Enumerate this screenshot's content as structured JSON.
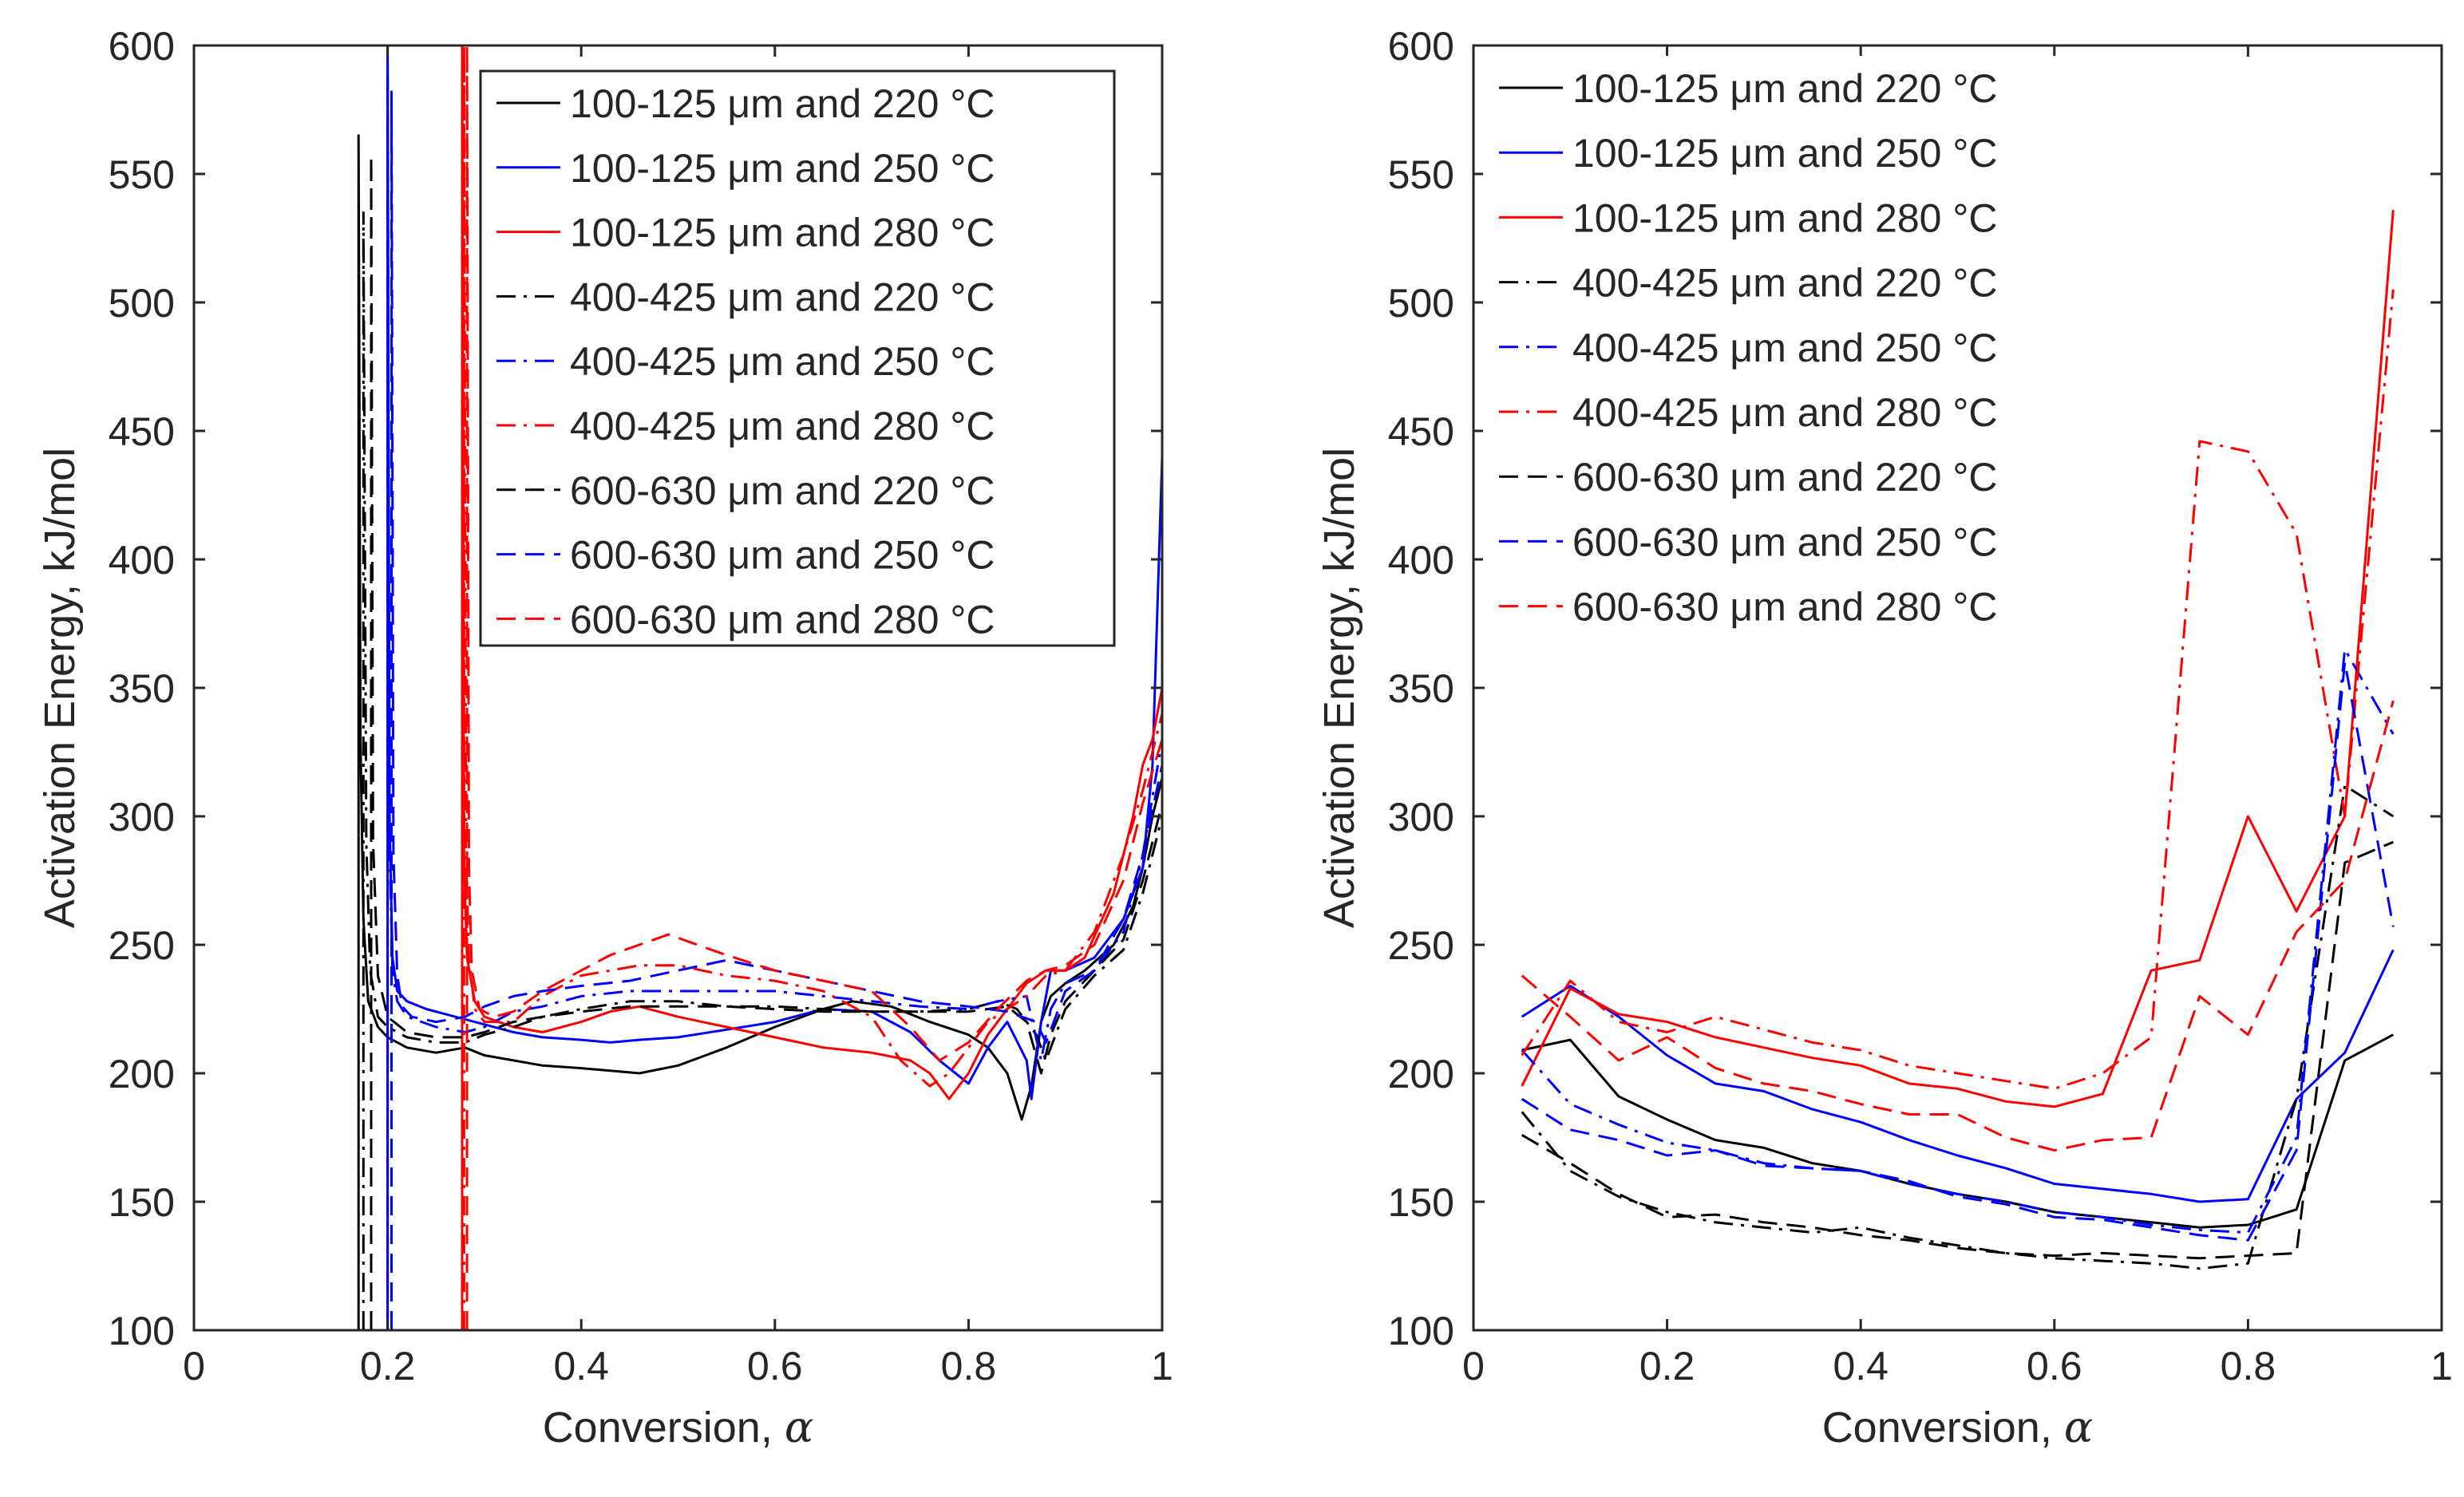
{
  "chart_data": [
    {
      "type": "line",
      "title": "",
      "xlabel": "Conversion, α",
      "ylabel": "Activation Energy, kJ/mol",
      "xlim": [
        0,
        1
      ],
      "ylim": [
        100,
        600
      ],
      "xticks": [
        0,
        0.2,
        0.4,
        0.6,
        0.8,
        1
      ],
      "xtick_labels": [
        "0",
        "0.2",
        "0.4",
        "0.6",
        "0.8",
        "1"
      ],
      "yticks": [
        100,
        150,
        200,
        250,
        300,
        350,
        400,
        450,
        500,
        550,
        600
      ],
      "ytick_labels": [
        "100",
        "150",
        "200",
        "250",
        "300",
        "350",
        "400",
        "450",
        "500",
        "550",
        "600"
      ],
      "legend_position": "top-right",
      "series": [
        {
          "name": "100-125 μm and 220 °C",
          "color": "#000000",
          "style": "solid",
          "x": [
            0.17,
            0.17,
            0.172,
            0.175,
            0.18,
            0.19,
            0.2,
            0.22,
            0.25,
            0.28,
            0.3,
            0.33,
            0.36,
            0.4,
            0.43,
            0.46,
            0.5,
            0.55,
            0.6,
            0.65,
            0.68,
            0.72,
            0.76,
            0.8,
            0.82,
            0.84,
            0.855,
            0.865,
            0.875,
            0.885,
            0.9,
            0.92,
            0.95,
            0.97,
            0.98,
            0.99,
            1.0
          ],
          "y": [
            100,
            565,
            330,
            260,
            228,
            218,
            214,
            210,
            208,
            210,
            207,
            205,
            203,
            202,
            201,
            200,
            203,
            210,
            218,
            225,
            228,
            226,
            220,
            215,
            210,
            200,
            182,
            195,
            220,
            230,
            235,
            240,
            250,
            265,
            280,
            300,
            315
          ]
        },
        {
          "name": "100-125 μm and 250 °C",
          "color": "#0000ff",
          "style": "solid",
          "x": [
            0.2,
            0.2,
            0.202,
            0.205,
            0.21,
            0.22,
            0.24,
            0.27,
            0.3,
            0.33,
            0.36,
            0.4,
            0.43,
            0.46,
            0.5,
            0.55,
            0.6,
            0.65,
            0.7,
            0.74,
            0.77,
            0.8,
            0.82,
            0.84,
            0.86,
            0.865,
            0.875,
            0.885,
            0.9,
            0.93,
            0.96,
            0.98,
            0.99,
            1.0
          ],
          "y": [
            100,
            600,
            300,
            245,
            232,
            228,
            225,
            222,
            219,
            216,
            214,
            213,
            212,
            213,
            214,
            217,
            220,
            225,
            224,
            216,
            205,
            196,
            210,
            220,
            205,
            190,
            220,
            240,
            240,
            245,
            260,
            280,
            320,
            440
          ]
        },
        {
          "name": "100-125 μm and 280 °C",
          "color": "#ff0000",
          "style": "solid",
          "x": [
            0.277,
            0.277,
            0.279,
            0.282,
            0.29,
            0.3,
            0.33,
            0.36,
            0.4,
            0.43,
            0.46,
            0.5,
            0.55,
            0.6,
            0.65,
            0.7,
            0.74,
            0.76,
            0.78,
            0.8,
            0.82,
            0.84,
            0.86,
            0.88,
            0.9,
            0.92,
            0.95,
            0.97,
            0.98,
            0.99,
            1.0
          ],
          "y": [
            100,
            600,
            280,
            245,
            228,
            222,
            218,
            216,
            220,
            224,
            226,
            222,
            218,
            214,
            210,
            208,
            205,
            200,
            190,
            200,
            215,
            225,
            235,
            240,
            240,
            245,
            270,
            300,
            320,
            330,
            350
          ]
        },
        {
          "name": "400-425 μm and 220 °C",
          "color": "#000000",
          "style": "dashdot",
          "x": [
            0.175,
            0.175,
            0.178,
            0.182,
            0.19,
            0.2,
            0.22,
            0.25,
            0.28,
            0.3,
            0.33,
            0.36,
            0.4,
            0.45,
            0.5,
            0.55,
            0.6,
            0.65,
            0.7,
            0.75,
            0.8,
            0.83,
            0.85,
            0.87,
            0.88,
            0.9,
            0.93,
            0.96,
            0.98,
            1.0
          ],
          "y": [
            100,
            535,
            290,
            240,
            222,
            218,
            214,
            212,
            212,
            215,
            218,
            222,
            225,
            228,
            228,
            226,
            226,
            225,
            224,
            224,
            225,
            228,
            225,
            215,
            205,
            225,
            238,
            248,
            270,
            300
          ]
        },
        {
          "name": "400-425 μm and 250 °C",
          "color": "#0000ff",
          "style": "dashdot",
          "x": [
            0.2,
            0.2,
            0.202,
            0.205,
            0.21,
            0.22,
            0.25,
            0.28,
            0.3,
            0.33,
            0.36,
            0.4,
            0.45,
            0.5,
            0.55,
            0.6,
            0.65,
            0.7,
            0.75,
            0.8,
            0.83,
            0.86,
            0.875,
            0.885,
            0.9,
            0.93,
            0.96,
            0.98,
            1.0
          ],
          "y": [
            100,
            590,
            290,
            240,
            228,
            222,
            218,
            216,
            218,
            224,
            226,
            230,
            232,
            232,
            232,
            232,
            230,
            228,
            226,
            225,
            228,
            230,
            205,
            225,
            235,
            240,
            255,
            285,
            330
          ]
        },
        {
          "name": "400-425 μm and 280 °C",
          "color": "#ff0000",
          "style": "dashdot",
          "x": [
            0.279,
            0.279,
            0.281,
            0.284,
            0.29,
            0.3,
            0.33,
            0.36,
            0.4,
            0.43,
            0.46,
            0.5,
            0.55,
            0.6,
            0.65,
            0.7,
            0.73,
            0.76,
            0.78,
            0.8,
            0.82,
            0.84,
            0.86,
            0.88,
            0.9,
            0.93,
            0.96,
            0.98,
            1.0
          ],
          "y": [
            100,
            600,
            285,
            245,
            225,
            220,
            220,
            230,
            238,
            240,
            242,
            242,
            238,
            236,
            232,
            222,
            205,
            195,
            200,
            210,
            220,
            225,
            230,
            238,
            240,
            255,
            285,
            310,
            340
          ]
        },
        {
          "name": "600-630 μm and 220 °C",
          "color": "#000000",
          "style": "dashed",
          "x": [
            0.183,
            0.183,
            0.185,
            0.19,
            0.2,
            0.22,
            0.25,
            0.28,
            0.3,
            0.33,
            0.36,
            0.4,
            0.45,
            0.5,
            0.55,
            0.6,
            0.65,
            0.7,
            0.75,
            0.8,
            0.84,
            0.86,
            0.875,
            0.885,
            0.9,
            0.93,
            0.96,
            0.98,
            1.0
          ],
          "y": [
            100,
            557,
            290,
            238,
            222,
            216,
            214,
            214,
            216,
            220,
            222,
            224,
            226,
            226,
            226,
            225,
            224,
            224,
            224,
            224,
            226,
            220,
            200,
            215,
            228,
            240,
            252,
            275,
            305
          ]
        },
        {
          "name": "600-630 μm and 250 °C",
          "color": "#0000ff",
          "style": "dashed",
          "x": [
            0.204,
            0.204,
            0.206,
            0.21,
            0.215,
            0.225,
            0.25,
            0.28,
            0.3,
            0.33,
            0.36,
            0.4,
            0.45,
            0.5,
            0.55,
            0.6,
            0.65,
            0.7,
            0.75,
            0.8,
            0.84,
            0.87,
            0.88,
            0.89,
            0.9,
            0.93,
            0.96,
            0.98,
            1.0
          ],
          "y": [
            100,
            582,
            285,
            238,
            226,
            222,
            220,
            222,
            226,
            230,
            232,
            234,
            236,
            240,
            244,
            240,
            236,
            232,
            228,
            226,
            224,
            220,
            212,
            222,
            232,
            240,
            260,
            285,
            320
          ]
        },
        {
          "name": "600-630 μm and 280 °C",
          "color": "#ff0000",
          "style": "dashed",
          "x": [
            0.282,
            0.282,
            0.284,
            0.287,
            0.295,
            0.31,
            0.33,
            0.36,
            0.4,
            0.43,
            0.46,
            0.49,
            0.52,
            0.55,
            0.6,
            0.65,
            0.7,
            0.74,
            0.77,
            0.8,
            0.83,
            0.86,
            0.88,
            0.9,
            0.93,
            0.96,
            0.98,
            1.0
          ],
          "y": [
            100,
            600,
            280,
            240,
            225,
            222,
            224,
            232,
            240,
            246,
            250,
            254,
            250,
            246,
            240,
            236,
            232,
            218,
            205,
            212,
            225,
            236,
            240,
            242,
            250,
            275,
            305,
            330
          ]
        }
      ]
    },
    {
      "type": "line",
      "title": "",
      "xlabel": "Conversion, α",
      "ylabel": "Activation Energy, kJ/mol",
      "xlim": [
        0,
        1
      ],
      "ylim": [
        100,
        600
      ],
      "xticks": [
        0,
        0.2,
        0.4,
        0.6,
        0.8,
        1
      ],
      "xtick_labels": [
        "0",
        "0.2",
        "0.4",
        "0.6",
        "0.8",
        "1"
      ],
      "yticks": [
        100,
        150,
        200,
        250,
        300,
        350,
        400,
        450,
        500,
        550,
        600
      ],
      "ytick_labels": [
        "100",
        "150",
        "200",
        "250",
        "300",
        "350",
        "400",
        "450",
        "500",
        "550",
        "600"
      ],
      "legend_position": "top-left",
      "x": [
        0.05,
        0.1,
        0.15,
        0.2,
        0.25,
        0.3,
        0.35,
        0.4,
        0.45,
        0.5,
        0.55,
        0.6,
        0.65,
        0.7,
        0.75,
        0.8,
        0.85,
        0.9,
        0.95
      ],
      "series": [
        {
          "name": "100-125 μm and 220 °C",
          "color": "#000000",
          "style": "solid",
          "values": [
            209,
            213,
            191,
            182,
            174,
            171,
            165,
            162,
            157,
            153,
            150,
            146,
            144,
            142,
            140,
            141,
            147,
            205,
            215
          ]
        },
        {
          "name": "100-125 μm and 250 °C",
          "color": "#0000ff",
          "style": "solid",
          "values": [
            222,
            234,
            222,
            207,
            196,
            193,
            186,
            181,
            174,
            168,
            163,
            157,
            155,
            153,
            150,
            151,
            190,
            208,
            248
          ]
        },
        {
          "name": "100-125 μm and 280 °C",
          "color": "#ff0000",
          "style": "solid",
          "values": [
            195,
            233,
            223,
            220,
            214,
            210,
            206,
            203,
            196,
            194,
            189,
            187,
            192,
            240,
            244,
            300,
            263,
            300,
            536
          ]
        },
        {
          "name": "400-425 μm and 220 °C",
          "color": "#000000",
          "style": "dashdot",
          "values": [
            185,
            162,
            152,
            146,
            142,
            140,
            138,
            140,
            136,
            133,
            130,
            128,
            127,
            126,
            124,
            126,
            190,
            312,
            300
          ]
        },
        {
          "name": "400-425 μm and 250 °C",
          "color": "#0000ff",
          "style": "dashdot",
          "values": [
            209,
            188,
            180,
            173,
            170,
            165,
            163,
            162,
            157,
            153,
            150,
            146,
            144,
            141,
            139,
            138,
            175,
            365,
            332
          ]
        },
        {
          "name": "400-425 μm and 280 °C",
          "color": "#ff0000",
          "style": "dashdot",
          "values": [
            207,
            236,
            220,
            216,
            222,
            217,
            212,
            209,
            203,
            200,
            197,
            194,
            200,
            214,
            446,
            442,
            410,
            300,
            505
          ]
        },
        {
          "name": "600-630 μm and 220 °C",
          "color": "#000000",
          "style": "dashed",
          "values": [
            176,
            165,
            153,
            144,
            145,
            142,
            140,
            137,
            135,
            132,
            130,
            129,
            130,
            129,
            128,
            129,
            130,
            282,
            290
          ]
        },
        {
          "name": "600-630 μm and 250 °C",
          "color": "#0000ff",
          "style": "dashed",
          "values": [
            190,
            178,
            174,
            168,
            170,
            164,
            163,
            162,
            158,
            152,
            149,
            144,
            143,
            140,
            137,
            135,
            170,
            360,
            257
          ]
        },
        {
          "name": "600-630 μm and 280 °C",
          "color": "#ff0000",
          "style": "dashed",
          "values": [
            238,
            222,
            205,
            214,
            202,
            196,
            193,
            188,
            184,
            184,
            175,
            170,
            174,
            175,
            230,
            215,
            255,
            275,
            345
          ]
        }
      ]
    }
  ]
}
